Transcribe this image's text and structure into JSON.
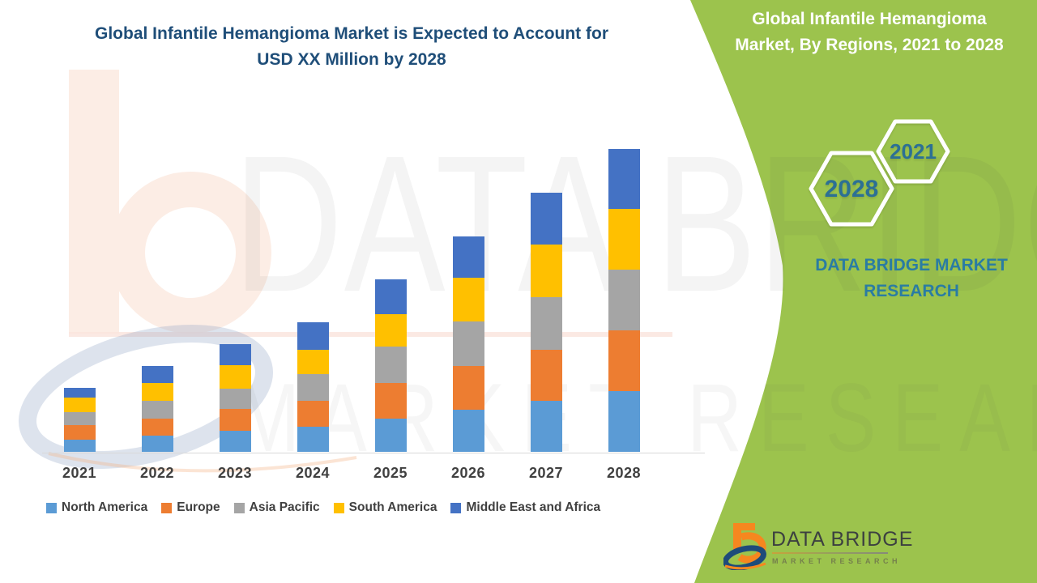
{
  "header": {
    "title_line1": "Global Infantile Hemangioma Market is Expected to Account for",
    "title_line2": "USD XX Million by 2028"
  },
  "side_panel": {
    "title_line1": "Global Infantile Hemangioma",
    "title_line2": "Market, By Regions, 2021 to 2028",
    "hexagon_large_year": "2028",
    "hexagon_small_year": "2021",
    "brand_line1": "DATA BRIDGE MARKET",
    "brand_line2": "RESEARCH",
    "colors": {
      "panel_green": "#9CC34D",
      "year_text": "#2C7094",
      "brand_text": "#2A7CA3"
    }
  },
  "footer_logo": {
    "name": "DATA BRIDGE",
    "subtitle": "MARKET RESEARCH"
  },
  "watermark": {
    "big_text": "DATA BRIDGE",
    "mid_text": "MARKET RESEARCH"
  },
  "chart_data": {
    "type": "bar",
    "stacked": true,
    "title": "Global Infantile Hemangioma Market is Expected to Account for USD XX Million by 2028",
    "unit_label": "USD XX Million (values not labeled on chart; series values are relative units read from bar heights)",
    "categories": [
      "2021",
      "2022",
      "2023",
      "2024",
      "2025",
      "2026",
      "2027",
      "2028"
    ],
    "series": [
      {
        "name": "North America",
        "color": "#5B9BD5",
        "values": [
          15,
          20,
          26,
          31,
          41,
          52,
          63,
          75
        ]
      },
      {
        "name": "Europe",
        "color": "#ED7D31",
        "values": [
          18,
          21,
          27,
          32,
          44,
          54,
          63,
          75
        ]
      },
      {
        "name": "Asia Pacific",
        "color": "#A5A5A5",
        "values": [
          16,
          22,
          25,
          33,
          45,
          55,
          65,
          75
        ]
      },
      {
        "name": "South America",
        "color": "#FFC000",
        "values": [
          18,
          22,
          29,
          30,
          40,
          54,
          65,
          75
        ]
      },
      {
        "name": "Middle East and Africa",
        "color": "#4472C4",
        "values": [
          12,
          21,
          26,
          34,
          43,
          51,
          64,
          74
        ]
      }
    ],
    "totals": [
      79,
      106,
      133,
      160,
      213,
      266,
      320,
      374
    ],
    "xlabel": "",
    "ylabel": "",
    "y_axis_visible": false,
    "grid": false,
    "legend_position": "bottom"
  }
}
